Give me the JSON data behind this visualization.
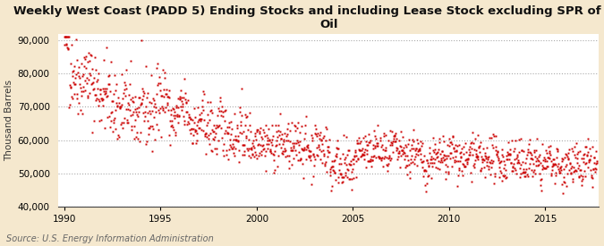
{
  "title": "Weekly West Coast (PADD 5) Ending Stocks and including Lease Stock excluding SPR of Crude\nOil",
  "ylabel": "Thousand Barrels",
  "source": "Source: U.S. Energy Information Administration",
  "background_color": "#f5e8ce",
  "plot_bg_color": "#ffffff",
  "dot_color": "#cc0000",
  "dot_size": 3.5,
  "xlim": [
    1989.7,
    2017.8
  ],
  "ylim": [
    40000,
    92000
  ],
  "yticks": [
    40000,
    50000,
    60000,
    70000,
    80000,
    90000
  ],
  "xticks": [
    1990,
    1995,
    2000,
    2005,
    2010,
    2015
  ],
  "title_fontsize": 9.5,
  "label_fontsize": 7.5,
  "tick_fontsize": 7.5,
  "source_fontsize": 7.0
}
